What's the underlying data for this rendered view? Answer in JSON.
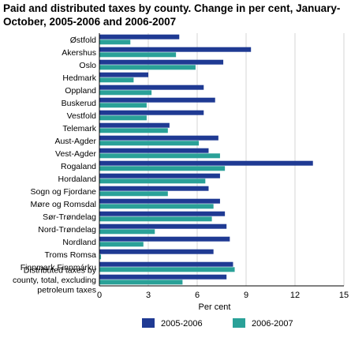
{
  "chart_data": {
    "type": "bar",
    "orientation": "horizontal",
    "title": "Paid and distributed taxes by county. Change in per cent, January-October, 2005-2006 and 2006-2007",
    "xlabel": "Per cent",
    "xlim": [
      0,
      15
    ],
    "xticks": [
      "0",
      "3",
      "6",
      "9",
      "12",
      "15"
    ],
    "xtick_values": [
      0,
      3,
      6,
      9,
      12,
      15
    ],
    "grid": "vertical",
    "legend_position": "bottom",
    "categories": [
      [
        "Østfold"
      ],
      [
        "Akershus"
      ],
      [
        "Oslo"
      ],
      [
        "Hedmark"
      ],
      [
        "Oppland"
      ],
      [
        "Buskerud"
      ],
      [
        "Vestfold"
      ],
      [
        "Telemark"
      ],
      [
        "Aust-Agder"
      ],
      [
        "Vest-Agder"
      ],
      [
        "Rogaland"
      ],
      [
        "Hordaland"
      ],
      [
        "Sogn og Fjordane"
      ],
      [
        "Møre og Romsdal"
      ],
      [
        "Sør-Trøndelag"
      ],
      [
        "Nord-Trøndelag"
      ],
      [
        "Nordland"
      ],
      [
        "Troms Romsa"
      ],
      [
        "Finnmark Finnmárku"
      ],
      [
        "Distributed taxes by",
        "county, total, excluding",
        "petroleum taxes"
      ]
    ],
    "series": [
      {
        "name": "2005-2006",
        "color": "#1f3a93",
        "values": [
          4.9,
          9.3,
          7.6,
          3.0,
          6.4,
          7.1,
          6.4,
          4.3,
          7.3,
          6.7,
          13.1,
          7.4,
          6.7,
          7.4,
          7.7,
          7.8,
          8.0,
          7.0,
          8.2,
          7.8
        ]
      },
      {
        "name": "2006-2007",
        "color": "#2aa198",
        "values": [
          1.9,
          4.7,
          5.9,
          2.1,
          3.2,
          2.9,
          2.9,
          4.2,
          6.1,
          7.4,
          7.7,
          6.5,
          4.2,
          7.0,
          6.9,
          3.4,
          2.7,
          0.1,
          8.3,
          5.1
        ]
      }
    ]
  }
}
